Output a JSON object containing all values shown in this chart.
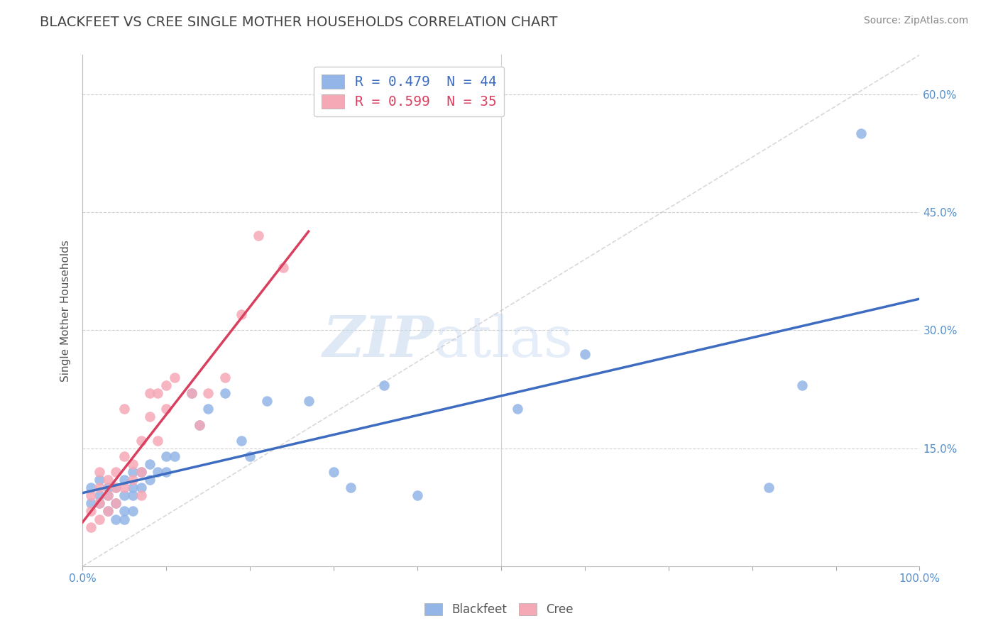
{
  "title": "BLACKFEET VS CREE SINGLE MOTHER HOUSEHOLDS CORRELATION CHART",
  "source": "Source: ZipAtlas.com",
  "ylabel": "Single Mother Households",
  "xlim": [
    0.0,
    1.0
  ],
  "ylim": [
    0.0,
    0.65
  ],
  "xticklabels": [
    "0.0%",
    "",
    "",
    "",
    "",
    "",
    "",
    "",
    "",
    "",
    "100.0%"
  ],
  "ytick_positions": [
    0.0,
    0.15,
    0.3,
    0.45,
    0.6
  ],
  "yticklabels_right": [
    "",
    "15.0%",
    "30.0%",
    "45.0%",
    "60.0%"
  ],
  "legend_blackfeet": "R = 0.479  N = 44",
  "legend_cree": "R = 0.599  N = 35",
  "blackfeet_color": "#93b5e8",
  "cree_color": "#f5a8b5",
  "blackfeet_line_color": "#3d6cc0",
  "cree_line_color": "#d94060",
  "diagonal_color": "#c8c8c8",
  "watermark_zip": "ZIP",
  "watermark_atlas": "atlas",
  "blackfeet_x": [
    0.01,
    0.01,
    0.02,
    0.02,
    0.02,
    0.03,
    0.03,
    0.03,
    0.04,
    0.04,
    0.04,
    0.05,
    0.05,
    0.05,
    0.05,
    0.06,
    0.06,
    0.06,
    0.06,
    0.07,
    0.07,
    0.08,
    0.08,
    0.09,
    0.1,
    0.1,
    0.11,
    0.13,
    0.14,
    0.15,
    0.17,
    0.19,
    0.2,
    0.22,
    0.27,
    0.3,
    0.32,
    0.36,
    0.4,
    0.52,
    0.6,
    0.82,
    0.86,
    0.93
  ],
  "blackfeet_y": [
    0.08,
    0.1,
    0.09,
    0.11,
    0.08,
    0.1,
    0.09,
    0.07,
    0.1,
    0.08,
    0.06,
    0.11,
    0.09,
    0.07,
    0.06,
    0.12,
    0.1,
    0.09,
    0.07,
    0.12,
    0.1,
    0.13,
    0.11,
    0.12,
    0.14,
    0.12,
    0.14,
    0.22,
    0.18,
    0.2,
    0.22,
    0.16,
    0.14,
    0.21,
    0.21,
    0.12,
    0.1,
    0.23,
    0.09,
    0.2,
    0.27,
    0.1,
    0.23,
    0.55
  ],
  "cree_x": [
    0.01,
    0.01,
    0.01,
    0.02,
    0.02,
    0.02,
    0.02,
    0.03,
    0.03,
    0.03,
    0.04,
    0.04,
    0.04,
    0.05,
    0.05,
    0.05,
    0.06,
    0.06,
    0.07,
    0.07,
    0.07,
    0.08,
    0.08,
    0.09,
    0.09,
    0.1,
    0.1,
    0.11,
    0.13,
    0.14,
    0.15,
    0.17,
    0.19,
    0.21,
    0.24
  ],
  "cree_y": [
    0.05,
    0.07,
    0.09,
    0.06,
    0.08,
    0.1,
    0.12,
    0.07,
    0.09,
    0.11,
    0.08,
    0.1,
    0.12,
    0.2,
    0.14,
    0.1,
    0.13,
    0.11,
    0.16,
    0.12,
    0.09,
    0.22,
    0.19,
    0.22,
    0.16,
    0.23,
    0.2,
    0.24,
    0.22,
    0.18,
    0.22,
    0.24,
    0.32,
    0.42,
    0.38
  ]
}
